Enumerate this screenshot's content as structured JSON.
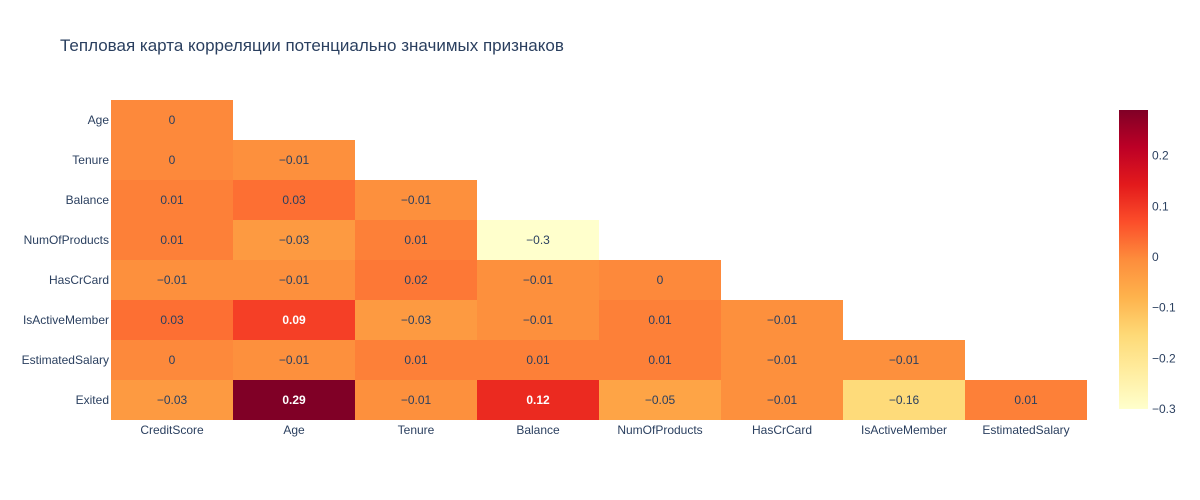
{
  "chart_data": {
    "type": "heatmap",
    "title": "Тепловая карта корреляции потенциально значимых признаков",
    "x_labels": [
      "CreditScore",
      "Age",
      "Tenure",
      "Balance",
      "NumOfProducts",
      "HasCrCard",
      "IsActiveMember",
      "EstimatedSalary"
    ],
    "y_labels": [
      "Age",
      "Tenure",
      "Balance",
      "NumOfProducts",
      "HasCrCard",
      "IsActiveMember",
      "EstimatedSalary",
      "Exited"
    ],
    "z": [
      [
        0,
        null,
        null,
        null,
        null,
        null,
        null,
        null
      ],
      [
        0,
        -0.01,
        null,
        null,
        null,
        null,
        null,
        null
      ],
      [
        0.01,
        0.03,
        -0.01,
        null,
        null,
        null,
        null,
        null
      ],
      [
        0.01,
        -0.03,
        0.01,
        -0.3,
        null,
        null,
        null,
        null
      ],
      [
        -0.01,
        -0.01,
        0.02,
        -0.01,
        0,
        null,
        null,
        null
      ],
      [
        0.03,
        0.09,
        -0.03,
        -0.01,
        0.01,
        -0.01,
        null,
        null
      ],
      [
        0,
        -0.01,
        0.01,
        0.01,
        0.01,
        -0.01,
        -0.01,
        null
      ],
      [
        -0.03,
        0.29,
        -0.01,
        0.12,
        -0.05,
        -0.01,
        -0.16,
        0.01
      ]
    ],
    "colorscale": "YlOrRd",
    "zmin": -0.3,
    "zmax": 0.29,
    "colorbar_ticks": [
      0.2,
      0.1,
      0,
      -0.1,
      -0.2,
      -0.3
    ],
    "colorbar_tick_labels": [
      "0.2",
      "0.1",
      "0",
      "−0.1",
      "−0.2",
      "−0.3"
    ],
    "colors": {
      "stops": [
        "#ffffcc",
        "#ffeda0",
        "#fed976",
        "#feb24c",
        "#fd8d3c",
        "#fc4e2a",
        "#e31a1c",
        "#bd0026",
        "#800026"
      ],
      "text_dark": "#2a3f5f",
      "text_light": "#ffffff",
      "title": "#2a3f5f"
    }
  }
}
